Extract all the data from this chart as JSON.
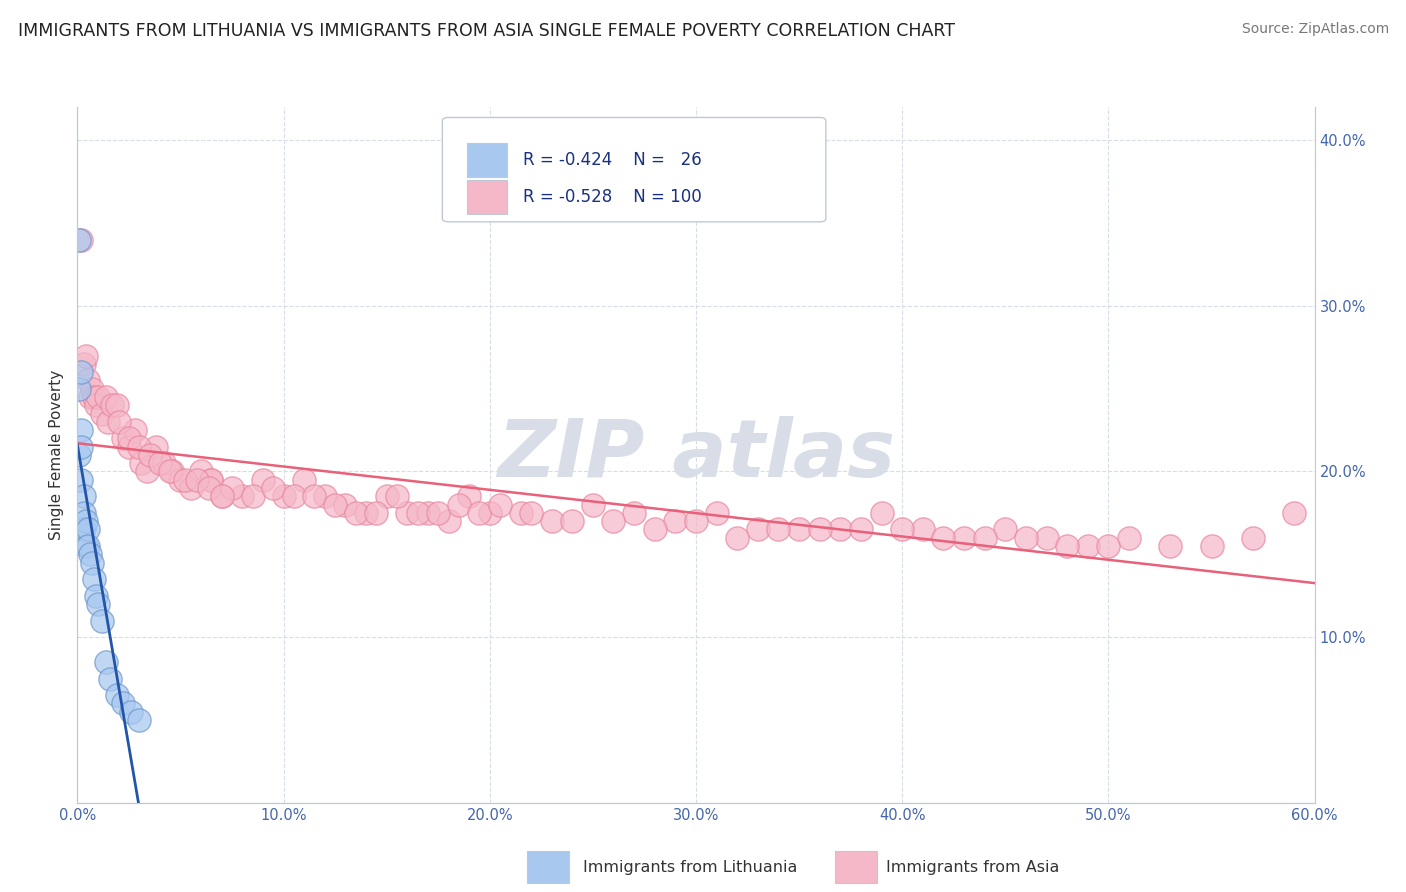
{
  "title": "IMMIGRANTS FROM LITHUANIA VS IMMIGRANTS FROM ASIA SINGLE FEMALE POVERTY CORRELATION CHART",
  "source": "Source: ZipAtlas.com",
  "ylabel": "Single Female Poverty",
  "xlim": [
    0.0,
    0.6
  ],
  "ylim": [
    0.0,
    0.42
  ],
  "x_ticks": [
    0.0,
    0.1,
    0.2,
    0.3,
    0.4,
    0.5,
    0.6
  ],
  "x_tick_labels": [
    "0.0%",
    "10.0%",
    "20.0%",
    "30.0%",
    "40.0%",
    "50.0%",
    "60.0%"
  ],
  "y_ticks": [
    0.0,
    0.1,
    0.2,
    0.3,
    0.4
  ],
  "y_tick_labels_right": [
    "",
    "10.0%",
    "20.0%",
    "30.0%",
    "40.0%"
  ],
  "blue_fill": "#a8c8f0",
  "pink_fill": "#f5b8c8",
  "blue_edge": "#7098c8",
  "pink_edge": "#e888a0",
  "blue_line": "#2255aa",
  "pink_line": "#e8607a",
  "grid_color": "#d5dde8",
  "bg_color": "#ffffff",
  "watermark_color": "#d8dde8",
  "legend_border": "#c0c8d8",
  "lith_x": [
    0.001,
    0.001,
    0.001,
    0.002,
    0.002,
    0.002,
    0.002,
    0.003,
    0.003,
    0.003,
    0.004,
    0.004,
    0.005,
    0.005,
    0.006,
    0.007,
    0.008,
    0.009,
    0.01,
    0.012,
    0.014,
    0.016,
    0.019,
    0.022,
    0.026,
    0.03
  ],
  "lith_y": [
    0.34,
    0.25,
    0.21,
    0.26,
    0.225,
    0.195,
    0.215,
    0.185,
    0.175,
    0.165,
    0.17,
    0.155,
    0.165,
    0.155,
    0.15,
    0.145,
    0.135,
    0.125,
    0.12,
    0.11,
    0.085,
    0.075,
    0.065,
    0.06,
    0.055,
    0.05
  ],
  "asia_x": [
    0.002,
    0.003,
    0.004,
    0.005,
    0.006,
    0.007,
    0.008,
    0.009,
    0.01,
    0.012,
    0.014,
    0.015,
    0.017,
    0.019,
    0.022,
    0.025,
    0.028,
    0.031,
    0.034,
    0.038,
    0.042,
    0.046,
    0.05,
    0.055,
    0.06,
    0.065,
    0.07,
    0.08,
    0.09,
    0.1,
    0.11,
    0.12,
    0.13,
    0.14,
    0.15,
    0.16,
    0.17,
    0.18,
    0.19,
    0.2,
    0.215,
    0.23,
    0.25,
    0.27,
    0.29,
    0.31,
    0.33,
    0.35,
    0.37,
    0.39,
    0.41,
    0.43,
    0.45,
    0.47,
    0.49,
    0.51,
    0.53,
    0.55,
    0.57,
    0.59,
    0.065,
    0.075,
    0.085,
    0.095,
    0.105,
    0.115,
    0.125,
    0.135,
    0.145,
    0.155,
    0.165,
    0.175,
    0.185,
    0.195,
    0.205,
    0.22,
    0.24,
    0.26,
    0.28,
    0.3,
    0.32,
    0.34,
    0.36,
    0.38,
    0.4,
    0.42,
    0.44,
    0.46,
    0.48,
    0.5,
    0.02,
    0.025,
    0.03,
    0.035,
    0.04,
    0.045,
    0.052,
    0.058,
    0.064,
    0.07
  ],
  "asia_y": [
    0.34,
    0.265,
    0.27,
    0.255,
    0.245,
    0.25,
    0.245,
    0.24,
    0.245,
    0.235,
    0.245,
    0.23,
    0.24,
    0.24,
    0.22,
    0.215,
    0.225,
    0.205,
    0.2,
    0.215,
    0.205,
    0.2,
    0.195,
    0.19,
    0.2,
    0.195,
    0.185,
    0.185,
    0.195,
    0.185,
    0.195,
    0.185,
    0.18,
    0.175,
    0.185,
    0.175,
    0.175,
    0.17,
    0.185,
    0.175,
    0.175,
    0.17,
    0.18,
    0.175,
    0.17,
    0.175,
    0.165,
    0.165,
    0.165,
    0.175,
    0.165,
    0.16,
    0.165,
    0.16,
    0.155,
    0.16,
    0.155,
    0.155,
    0.16,
    0.175,
    0.195,
    0.19,
    0.185,
    0.19,
    0.185,
    0.185,
    0.18,
    0.175,
    0.175,
    0.185,
    0.175,
    0.175,
    0.18,
    0.175,
    0.18,
    0.175,
    0.17,
    0.17,
    0.165,
    0.17,
    0.16,
    0.165,
    0.165,
    0.165,
    0.165,
    0.16,
    0.16,
    0.16,
    0.155,
    0.155,
    0.23,
    0.22,
    0.215,
    0.21,
    0.205,
    0.2,
    0.195,
    0.195,
    0.19,
    0.185
  ],
  "scatter_size": 280,
  "scatter_alpha": 0.72,
  "scatter_lw": 1.0
}
